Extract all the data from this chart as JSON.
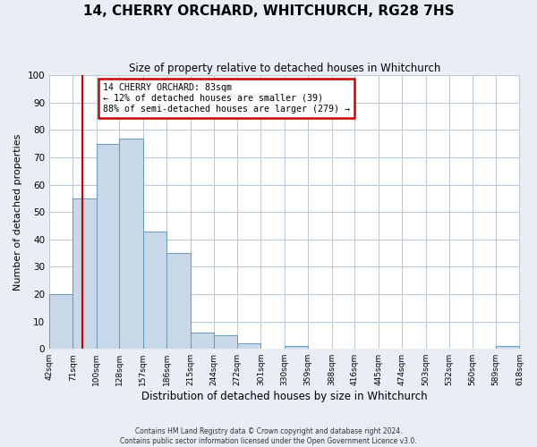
{
  "title": "14, CHERRY ORCHARD, WHITCHURCH, RG28 7HS",
  "subtitle": "Size of property relative to detached houses in Whitchurch",
  "xlabel": "Distribution of detached houses by size in Whitchurch",
  "ylabel": "Number of detached properties",
  "bar_edges": [
    42,
    71,
    100,
    128,
    157,
    186,
    215,
    244,
    272,
    301,
    330,
    359,
    388,
    416,
    445,
    474,
    503,
    532,
    560,
    589,
    618
  ],
  "bar_heights": [
    20,
    55,
    75,
    77,
    43,
    35,
    6,
    5,
    2,
    0,
    1,
    0,
    0,
    0,
    0,
    0,
    0,
    0,
    0,
    1,
    0
  ],
  "bar_color": "#c8d8e8",
  "bar_edgecolor": "#6699bb",
  "property_line_x": 83,
  "property_line_color": "#cc0000",
  "annotation_line1": "14 CHERRY ORCHARD: 83sqm",
  "annotation_line2": "← 12% of detached houses are smaller (39)",
  "annotation_line3": "88% of semi-detached houses are larger (279) →",
  "annotation_box_color": "#cc0000",
  "ylim": [
    0,
    100
  ],
  "yticks": [
    0,
    10,
    20,
    30,
    40,
    50,
    60,
    70,
    80,
    90,
    100
  ],
  "tick_labels": [
    "42sqm",
    "71sqm",
    "100sqm",
    "128sqm",
    "157sqm",
    "186sqm",
    "215sqm",
    "244sqm",
    "272sqm",
    "301sqm",
    "330sqm",
    "359sqm",
    "388sqm",
    "416sqm",
    "445sqm",
    "474sqm",
    "503sqm",
    "532sqm",
    "560sqm",
    "589sqm",
    "618sqm"
  ],
  "footer_line1": "Contains HM Land Registry data © Crown copyright and database right 2024.",
  "footer_line2": "Contains public sector information licensed under the Open Government Licence v3.0.",
  "bg_color": "#e8eef4",
  "plot_bg_color": "#ffffff",
  "grid_color": "#b8c8d8"
}
